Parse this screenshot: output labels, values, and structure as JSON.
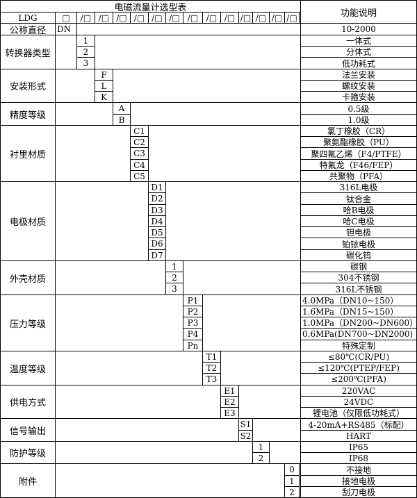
{
  "title": "电磁流量计选型表",
  "function_header": "功能说明",
  "model_row": {
    "prefix": "LDG",
    "boxes": [
      "□",
      "/□",
      "/□",
      "/□",
      "/□",
      "/□",
      "/□",
      "/□",
      "/□",
      "/□",
      "/□",
      "/□",
      "/□",
      "/□"
    ]
  },
  "nominal": {
    "label": "公称直径",
    "code": "DN",
    "desc": "10-2000"
  },
  "sections": [
    {
      "label": "转换器类型",
      "items": [
        {
          "code": "1",
          "desc": "一体式"
        },
        {
          "code": "2",
          "desc": "分体式"
        },
        {
          "code": "3",
          "desc": "低功耗式"
        }
      ]
    },
    {
      "label": "安装形式",
      "items": [
        {
          "code": "F",
          "desc": "法兰安装"
        },
        {
          "code": "L",
          "desc": "螺纹安装"
        },
        {
          "code": "K",
          "desc": "卡箍安装"
        }
      ]
    },
    {
      "label": "精度等级",
      "items": [
        {
          "code": "A",
          "desc": "0.5级"
        },
        {
          "code": "B",
          "desc": "1.0级"
        }
      ]
    },
    {
      "label": "衬里材质",
      "items": [
        {
          "code": "C1",
          "desc": "氯丁橡胶（CR）"
        },
        {
          "code": "C2",
          "desc": "聚氨酯橡胶（PU）"
        },
        {
          "code": "C3",
          "desc": "聚四氟乙烯（F4/PTFE）"
        },
        {
          "code": "C4",
          "desc": "特氟龙（F46/FEP）"
        },
        {
          "code": "C5",
          "desc": "共聚物（PFA）"
        }
      ]
    },
    {
      "label": "电极材质",
      "items": [
        {
          "code": "D1",
          "desc": "316L电极"
        },
        {
          "code": "D2",
          "desc": "钛合金"
        },
        {
          "code": "D3",
          "desc": "哈B电极"
        },
        {
          "code": "D4",
          "desc": "哈C电极"
        },
        {
          "code": "D5",
          "desc": "钽电极"
        },
        {
          "code": "D6",
          "desc": "铂铱电极"
        },
        {
          "code": "D7",
          "desc": "碳化钨"
        }
      ]
    },
    {
      "label": "外壳材质",
      "items": [
        {
          "code": "1",
          "desc": "碳钢"
        },
        {
          "code": "2",
          "desc": "304不锈钢"
        },
        {
          "code": "3",
          "desc": "316L不锈钢"
        }
      ]
    },
    {
      "label": "压力等级",
      "items": [
        {
          "code": "P1",
          "desc": "4.0MPa（DN10~150）",
          "left": true
        },
        {
          "code": "P2",
          "desc": "1.6MPa（DN15~150）",
          "left": true
        },
        {
          "code": "P3",
          "desc": "1.0MPa（DN200~DN600）",
          "left": true
        },
        {
          "code": "P4",
          "desc": "0.6MPa(DN700~DN2000)",
          "left": true
        },
        {
          "code": "Pn",
          "desc": "特殊定制"
        }
      ]
    },
    {
      "label": "温度等级",
      "items": [
        {
          "code": "T1",
          "desc": "≤80℃(CR/PU)"
        },
        {
          "code": "T2",
          "desc": "≤120℃(PTEP/FEP)"
        },
        {
          "code": "T3",
          "desc": "≤200℃(PFA)"
        }
      ]
    },
    {
      "label": "供电方式",
      "items": [
        {
          "code": "E1",
          "desc": "220VAC"
        },
        {
          "code": "E2",
          "desc": "24VDC"
        },
        {
          "code": "E3",
          "desc": "锂电池（仅限低功耗式）"
        }
      ]
    },
    {
      "label": "信号输出",
      "items": [
        {
          "code": "S1",
          "desc": "4-20mA+RS485（标配）"
        },
        {
          "code": "S2",
          "desc": "HART"
        }
      ]
    },
    {
      "label": "防护等级",
      "items": [
        {
          "code": "1",
          "desc": "IP65"
        },
        {
          "code": "2",
          "desc": "IP68"
        }
      ]
    },
    {
      "label": "附件",
      "items": [
        {
          "code": "0",
          "desc": "不接地"
        },
        {
          "code": "1",
          "desc": "接地电极"
        },
        {
          "code": "2",
          "desc": "刮刀电极"
        }
      ]
    }
  ]
}
